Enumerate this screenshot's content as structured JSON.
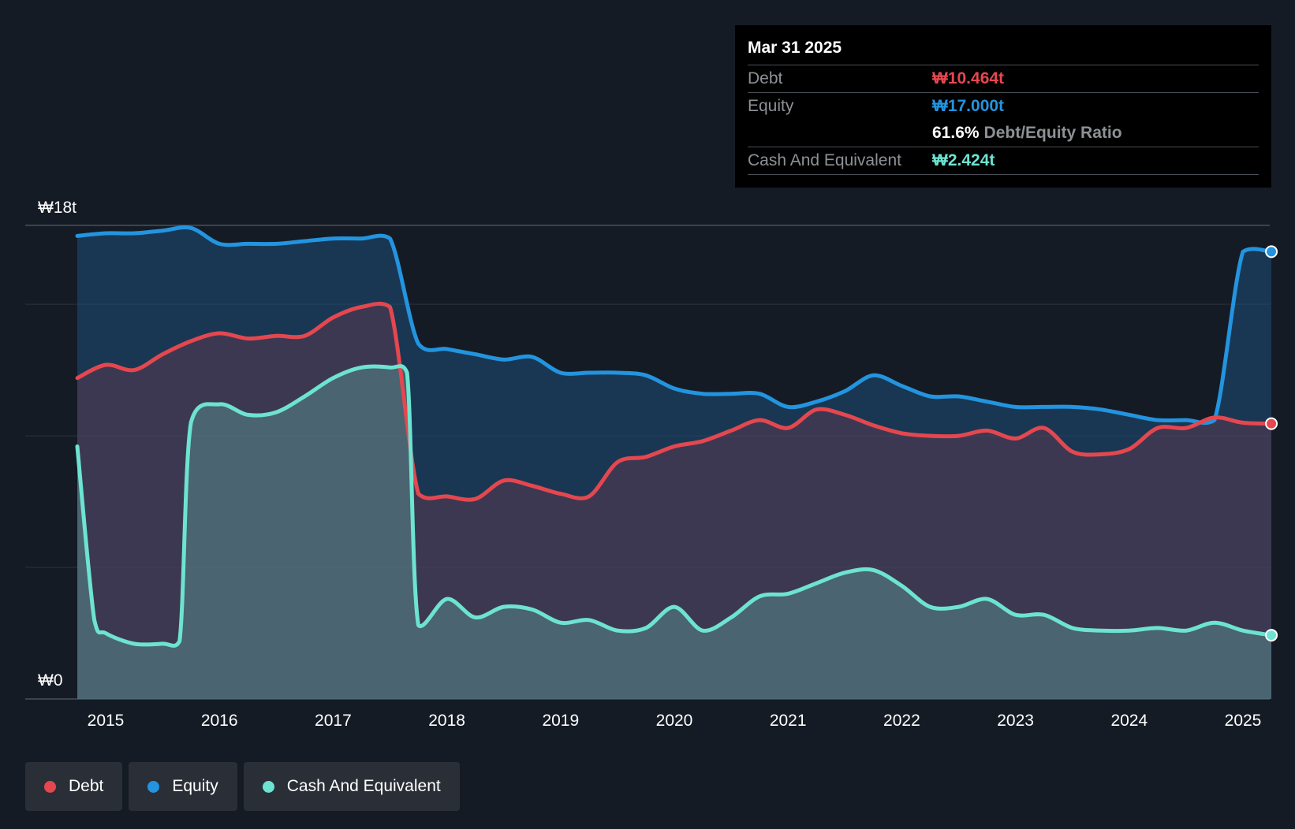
{
  "tooltip": {
    "date": "Mar 31 2025",
    "debt_label": "Debt",
    "debt_value": "₩10.464t",
    "equity_label": "Equity",
    "equity_value": "₩17.000t",
    "ratio_value": "61.6%",
    "ratio_label": "Debt/Equity Ratio",
    "cash_label": "Cash And Equivalent",
    "cash_value": "₩2.424t"
  },
  "legend": {
    "debt": "Debt",
    "equity": "Equity",
    "cash": "Cash And Equivalent"
  },
  "colors": {
    "debt": "#e5474f",
    "equity": "#2394df",
    "cash": "#6de3d1",
    "background": "#151b24"
  },
  "chart_data": {
    "type": "area",
    "y_top_label": "₩18t",
    "y_bottom_label": "₩0",
    "ylim": [
      0,
      18
    ],
    "xlim": [
      2014.7,
      2025.25
    ],
    "x_ticks": [
      2015,
      2016,
      2017,
      2018,
      2019,
      2020,
      2021,
      2022,
      2023,
      2024,
      2025
    ],
    "x_tick_labels": [
      "2015",
      "2016",
      "2017",
      "2018",
      "2019",
      "2020",
      "2021",
      "2022",
      "2023",
      "2024",
      "2025"
    ],
    "grid": true,
    "series": [
      {
        "name": "Equity",
        "key": "equity",
        "points": [
          [
            2014.75,
            17.6
          ],
          [
            2015.0,
            17.7
          ],
          [
            2015.25,
            17.7
          ],
          [
            2015.5,
            17.8
          ],
          [
            2015.75,
            17.9
          ],
          [
            2016.0,
            17.3
          ],
          [
            2016.25,
            17.3
          ],
          [
            2016.5,
            17.3
          ],
          [
            2016.75,
            17.4
          ],
          [
            2017.0,
            17.5
          ],
          [
            2017.25,
            17.5
          ],
          [
            2017.5,
            17.5
          ],
          [
            2017.75,
            13.5
          ],
          [
            2018.0,
            13.3
          ],
          [
            2018.25,
            13.1
          ],
          [
            2018.5,
            12.9
          ],
          [
            2018.75,
            13.0
          ],
          [
            2019.0,
            12.4
          ],
          [
            2019.25,
            12.4
          ],
          [
            2019.5,
            12.4
          ],
          [
            2019.75,
            12.3
          ],
          [
            2020.0,
            11.8
          ],
          [
            2020.25,
            11.6
          ],
          [
            2020.5,
            11.6
          ],
          [
            2020.75,
            11.6
          ],
          [
            2021.0,
            11.1
          ],
          [
            2021.25,
            11.3
          ],
          [
            2021.5,
            11.7
          ],
          [
            2021.75,
            12.3
          ],
          [
            2022.0,
            11.9
          ],
          [
            2022.25,
            11.5
          ],
          [
            2022.5,
            11.5
          ],
          [
            2022.75,
            11.3
          ],
          [
            2023.0,
            11.1
          ],
          [
            2023.25,
            11.1
          ],
          [
            2023.5,
            11.1
          ],
          [
            2023.75,
            11.0
          ],
          [
            2024.0,
            10.8
          ],
          [
            2024.25,
            10.6
          ],
          [
            2024.5,
            10.6
          ],
          [
            2024.75,
            10.6
          ],
          [
            2025.0,
            17.0
          ],
          [
            2025.25,
            17.0
          ]
        ]
      },
      {
        "name": "Debt",
        "key": "debt",
        "points": [
          [
            2014.75,
            12.2
          ],
          [
            2015.0,
            12.7
          ],
          [
            2015.25,
            12.5
          ],
          [
            2015.5,
            13.1
          ],
          [
            2015.75,
            13.6
          ],
          [
            2016.0,
            13.9
          ],
          [
            2016.25,
            13.7
          ],
          [
            2016.5,
            13.8
          ],
          [
            2016.75,
            13.8
          ],
          [
            2017.0,
            14.5
          ],
          [
            2017.25,
            14.9
          ],
          [
            2017.5,
            14.9
          ],
          [
            2017.75,
            7.8
          ],
          [
            2018.0,
            7.7
          ],
          [
            2018.25,
            7.6
          ],
          [
            2018.5,
            8.3
          ],
          [
            2018.75,
            8.1
          ],
          [
            2019.0,
            7.8
          ],
          [
            2019.25,
            7.7
          ],
          [
            2019.5,
            9.0
          ],
          [
            2019.75,
            9.2
          ],
          [
            2020.0,
            9.6
          ],
          [
            2020.25,
            9.8
          ],
          [
            2020.5,
            10.2
          ],
          [
            2020.75,
            10.6
          ],
          [
            2021.0,
            10.3
          ],
          [
            2021.25,
            11.0
          ],
          [
            2021.5,
            10.8
          ],
          [
            2021.75,
            10.4
          ],
          [
            2022.0,
            10.1
          ],
          [
            2022.25,
            10.0
          ],
          [
            2022.5,
            10.0
          ],
          [
            2022.75,
            10.2
          ],
          [
            2023.0,
            9.9
          ],
          [
            2023.25,
            10.3
          ],
          [
            2023.5,
            9.4
          ],
          [
            2023.75,
            9.3
          ],
          [
            2024.0,
            9.5
          ],
          [
            2024.25,
            10.3
          ],
          [
            2024.5,
            10.3
          ],
          [
            2024.75,
            10.7
          ],
          [
            2025.0,
            10.5
          ],
          [
            2025.25,
            10.464
          ]
        ]
      },
      {
        "name": "Cash And Equivalent",
        "key": "cash",
        "points": [
          [
            2014.75,
            9.6
          ],
          [
            2014.9,
            3.0
          ],
          [
            2015.0,
            2.5
          ],
          [
            2015.25,
            2.1
          ],
          [
            2015.5,
            2.1
          ],
          [
            2015.65,
            2.2
          ],
          [
            2015.75,
            10.5
          ],
          [
            2016.0,
            11.2
          ],
          [
            2016.25,
            10.8
          ],
          [
            2016.5,
            10.9
          ],
          [
            2016.75,
            11.5
          ],
          [
            2017.0,
            12.2
          ],
          [
            2017.25,
            12.6
          ],
          [
            2017.5,
            12.6
          ],
          [
            2017.65,
            12.4
          ],
          [
            2017.75,
            2.8
          ],
          [
            2018.0,
            3.8
          ],
          [
            2018.25,
            3.1
          ],
          [
            2018.5,
            3.5
          ],
          [
            2018.75,
            3.4
          ],
          [
            2019.0,
            2.9
          ],
          [
            2019.25,
            3.0
          ],
          [
            2019.5,
            2.6
          ],
          [
            2019.75,
            2.7
          ],
          [
            2020.0,
            3.5
          ],
          [
            2020.25,
            2.6
          ],
          [
            2020.5,
            3.1
          ],
          [
            2020.75,
            3.9
          ],
          [
            2021.0,
            4.0
          ],
          [
            2021.25,
            4.4
          ],
          [
            2021.5,
            4.8
          ],
          [
            2021.75,
            4.9
          ],
          [
            2022.0,
            4.3
          ],
          [
            2022.25,
            3.5
          ],
          [
            2022.5,
            3.5
          ],
          [
            2022.75,
            3.8
          ],
          [
            2023.0,
            3.2
          ],
          [
            2023.25,
            3.2
          ],
          [
            2023.5,
            2.7
          ],
          [
            2023.75,
            2.6
          ],
          [
            2024.0,
            2.6
          ],
          [
            2024.25,
            2.7
          ],
          [
            2024.5,
            2.6
          ],
          [
            2024.75,
            2.9
          ],
          [
            2025.0,
            2.6
          ],
          [
            2025.25,
            2.424
          ]
        ]
      }
    ]
  }
}
